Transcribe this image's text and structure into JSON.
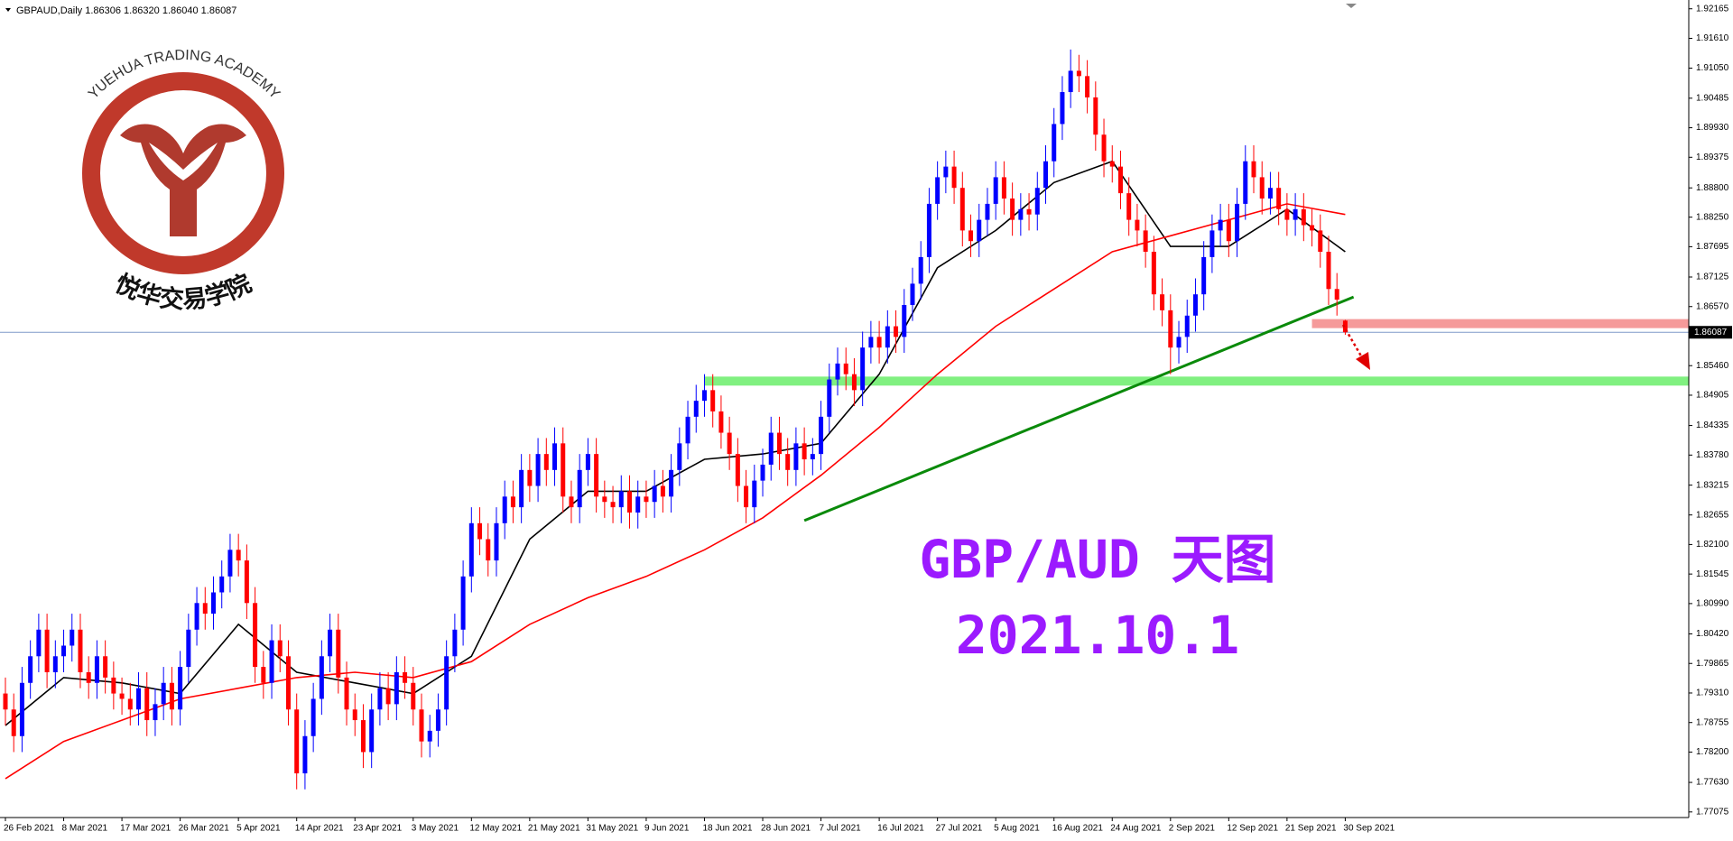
{
  "header": "GBPAUD,Daily  1.86306 1.86320 1.86040 1.86087",
  "logo": {
    "name_en": "YUEHUA TRADING ACADEMY",
    "name_cn": "悦华交易学院"
  },
  "chart_data": {
    "type": "candlestick",
    "title": "GBP/AUD  天图",
    "subtitle": "2021.10.1",
    "categories": [
      "26 Feb 2021",
      null,
      null,
      null,
      null,
      null,
      null,
      "8 Mar 2021",
      null,
      null,
      null,
      null,
      null,
      null,
      "17 Mar 2021",
      null,
      null,
      null,
      null,
      null,
      null,
      "26 Mar 2021",
      null,
      null,
      null,
      null,
      null,
      null,
      "5 Apr 2021",
      null,
      null,
      null,
      null,
      null,
      null,
      "14 Apr 2021",
      null,
      null,
      null,
      null,
      null,
      null,
      "23 Apr 2021",
      null,
      null,
      null,
      null,
      null,
      null,
      "3 May 2021",
      null,
      null,
      null,
      null,
      null,
      null,
      "12 May 2021",
      null,
      null,
      null,
      null,
      null,
      null,
      "21 May 2021",
      null,
      null,
      null,
      null,
      null,
      null,
      "31 May 2021",
      null,
      null,
      null,
      null,
      null,
      null,
      "9 Jun 2021",
      null,
      null,
      null,
      null,
      null,
      null,
      "18 Jun 2021",
      null,
      null,
      null,
      null,
      null,
      null,
      "28 Jun 2021",
      null,
      null,
      null,
      null,
      null,
      null,
      "7 Jul 2021",
      null,
      null,
      null,
      null,
      null,
      null,
      "16 Jul 2021",
      null,
      null,
      null,
      null,
      null,
      null,
      "27 Jul 2021",
      null,
      null,
      null,
      null,
      null,
      null,
      "5 Aug 2021",
      null,
      null,
      null,
      null,
      null,
      null,
      "16 Aug 2021",
      null,
      null,
      null,
      null,
      null,
      null,
      "24 Aug 2021",
      null,
      null,
      null,
      null,
      null,
      null,
      "2 Sep 2021",
      null,
      null,
      null,
      null,
      null,
      null,
      "12 Sep 2021",
      null,
      null,
      null,
      null,
      null,
      null,
      "21 Sep 2021",
      null,
      null,
      null,
      null,
      null,
      null,
      "30 Sep 2021"
    ],
    "open": [
      1.793,
      1.79,
      1.785,
      1.795,
      1.8,
      1.805,
      1.797,
      1.8,
      1.802,
      1.805,
      1.797,
      1.795,
      1.8,
      1.796,
      1.793,
      1.792,
      1.79,
      1.794,
      1.788,
      1.791,
      1.795,
      1.79,
      1.798,
      1.805,
      1.81,
      1.808,
      1.812,
      1.815,
      1.82,
      1.818,
      1.81,
      1.798,
      1.795,
      1.803,
      1.8,
      1.79,
      1.778,
      1.785,
      1.792,
      1.8,
      1.805,
      1.796,
      1.79,
      1.788,
      1.782,
      1.79,
      1.794,
      1.791,
      1.797,
      1.795,
      1.79,
      1.784,
      1.786,
      1.79,
      1.8,
      1.805,
      1.815,
      1.825,
      1.822,
      1.818,
      1.825,
      1.83,
      1.828,
      1.835,
      1.832,
      1.838,
      1.835,
      1.84,
      1.83,
      1.828,
      1.835,
      1.838,
      1.83,
      1.829,
      1.828,
      1.831,
      1.827,
      1.83,
      1.829,
      1.832,
      1.83,
      1.835,
      1.84,
      1.845,
      1.848,
      1.85,
      1.846,
      1.842,
      1.838,
      1.832,
      1.828,
      1.833,
      1.836,
      1.842,
      1.838,
      1.835,
      1.84,
      1.837,
      1.838,
      1.845,
      1.852,
      1.855,
      1.853,
      1.85,
      1.858,
      1.86,
      1.858,
      1.862,
      1.86,
      1.866,
      1.87,
      1.875,
      1.885,
      1.89,
      1.892,
      1.888,
      1.88,
      1.878,
      1.882,
      1.885,
      1.89,
      1.886,
      1.882,
      1.884,
      1.883,
      1.888,
      1.893,
      1.9,
      1.906,
      1.91,
      1.909,
      1.905,
      1.898,
      1.893,
      1.892,
      1.887,
      1.882,
      1.88,
      1.876,
      1.868,
      1.865,
      1.858,
      1.86,
      1.864,
      1.868,
      1.875,
      1.88,
      1.882,
      1.878,
      1.885,
      1.893,
      1.89,
      1.886,
      1.888,
      1.884,
      1.882,
      1.884,
      1.881,
      1.88,
      1.876,
      1.869,
      1.86306
    ],
    "high": [
      1.796,
      1.793,
      1.798,
      1.803,
      1.808,
      1.808,
      1.803,
      1.805,
      1.808,
      1.808,
      1.8,
      1.803,
      1.803,
      1.799,
      1.796,
      1.795,
      1.797,
      1.797,
      1.794,
      1.798,
      1.798,
      1.801,
      1.808,
      1.813,
      1.813,
      1.815,
      1.818,
      1.823,
      1.823,
      1.821,
      1.813,
      1.801,
      1.806,
      1.806,
      1.803,
      1.793,
      1.788,
      1.795,
      1.803,
      1.808,
      1.808,
      1.799,
      1.793,
      1.791,
      1.793,
      1.797,
      1.797,
      1.8,
      1.8,
      1.798,
      1.793,
      1.789,
      1.793,
      1.803,
      1.808,
      1.818,
      1.828,
      1.828,
      1.825,
      1.828,
      1.833,
      1.833,
      1.838,
      1.838,
      1.841,
      1.841,
      1.843,
      1.843,
      1.833,
      1.838,
      1.841,
      1.841,
      1.833,
      1.832,
      1.834,
      1.834,
      1.833,
      1.833,
      1.835,
      1.835,
      1.838,
      1.843,
      1.848,
      1.851,
      1.853,
      1.853,
      1.849,
      1.845,
      1.841,
      1.835,
      1.836,
      1.839,
      1.845,
      1.845,
      1.841,
      1.843,
      1.843,
      1.841,
      1.848,
      1.855,
      1.858,
      1.858,
      1.856,
      1.861,
      1.863,
      1.863,
      1.865,
      1.865,
      1.869,
      1.873,
      1.878,
      1.888,
      1.893,
      1.895,
      1.895,
      1.891,
      1.883,
      1.885,
      1.888,
      1.893,
      1.893,
      1.889,
      1.887,
      1.887,
      1.891,
      1.896,
      1.903,
      1.909,
      1.914,
      1.913,
      1.912,
      1.908,
      1.901,
      1.896,
      1.895,
      1.89,
      1.885,
      1.883,
      1.879,
      1.871,
      1.868,
      1.863,
      1.867,
      1.871,
      1.878,
      1.883,
      1.885,
      1.885,
      1.888,
      1.896,
      1.896,
      1.893,
      1.891,
      1.891,
      1.887,
      1.887,
      1.887,
      1.884,
      1.883,
      1.879,
      1.872,
      1.8632
    ],
    "low": [
      1.787,
      1.782,
      1.782,
      1.792,
      1.797,
      1.794,
      1.794,
      1.797,
      1.799,
      1.794,
      1.792,
      1.792,
      1.793,
      1.79,
      1.789,
      1.787,
      1.787,
      1.785,
      1.785,
      1.788,
      1.787,
      1.787,
      1.795,
      1.802,
      1.805,
      1.805,
      1.809,
      1.812,
      1.815,
      1.807,
      1.795,
      1.792,
      1.792,
      1.797,
      1.787,
      1.775,
      1.775,
      1.782,
      1.789,
      1.797,
      1.793,
      1.787,
      1.785,
      1.779,
      1.779,
      1.787,
      1.788,
      1.788,
      1.792,
      1.787,
      1.781,
      1.781,
      1.783,
      1.787,
      1.797,
      1.802,
      1.812,
      1.819,
      1.815,
      1.815,
      1.822,
      1.825,
      1.825,
      1.829,
      1.829,
      1.832,
      1.832,
      1.827,
      1.825,
      1.825,
      1.832,
      1.827,
      1.826,
      1.825,
      1.825,
      1.824,
      1.824,
      1.826,
      1.826,
      1.827,
      1.827,
      1.832,
      1.837,
      1.842,
      1.845,
      1.843,
      1.839,
      1.835,
      1.829,
      1.825,
      1.825,
      1.83,
      1.833,
      1.835,
      1.832,
      1.832,
      1.834,
      1.834,
      1.835,
      1.842,
      1.849,
      1.85,
      1.847,
      1.847,
      1.855,
      1.855,
      1.855,
      1.857,
      1.857,
      1.863,
      1.867,
      1.872,
      1.882,
      1.887,
      1.885,
      1.877,
      1.875,
      1.875,
      1.879,
      1.882,
      1.883,
      1.879,
      1.879,
      1.88,
      1.88,
      1.885,
      1.89,
      1.897,
      1.903,
      1.906,
      1.902,
      1.895,
      1.89,
      1.889,
      1.884,
      1.879,
      1.877,
      1.873,
      1.865,
      1.862,
      1.853,
      1.855,
      1.857,
      1.861,
      1.865,
      1.872,
      1.877,
      1.875,
      1.875,
      1.882,
      1.887,
      1.883,
      1.883,
      1.881,
      1.879,
      1.879,
      1.878,
      1.877,
      1.873,
      1.866,
      1.864,
      1.8604
    ],
    "close": [
      1.79,
      1.785,
      1.795,
      1.8,
      1.805,
      1.797,
      1.8,
      1.802,
      1.805,
      1.797,
      1.795,
      1.8,
      1.796,
      1.793,
      1.792,
      1.79,
      1.794,
      1.788,
      1.791,
      1.795,
      1.79,
      1.798,
      1.805,
      1.81,
      1.808,
      1.812,
      1.815,
      1.82,
      1.818,
      1.81,
      1.798,
      1.795,
      1.803,
      1.8,
      1.79,
      1.778,
      1.785,
      1.792,
      1.8,
      1.805,
      1.796,
      1.79,
      1.788,
      1.782,
      1.79,
      1.794,
      1.791,
      1.797,
      1.795,
      1.79,
      1.784,
      1.786,
      1.79,
      1.8,
      1.805,
      1.815,
      1.825,
      1.822,
      1.818,
      1.825,
      1.83,
      1.828,
      1.835,
      1.832,
      1.838,
      1.835,
      1.84,
      1.83,
      1.828,
      1.835,
      1.838,
      1.83,
      1.829,
      1.828,
      1.831,
      1.827,
      1.83,
      1.829,
      1.832,
      1.83,
      1.835,
      1.84,
      1.845,
      1.848,
      1.85,
      1.846,
      1.842,
      1.838,
      1.832,
      1.828,
      1.833,
      1.836,
      1.842,
      1.838,
      1.835,
      1.84,
      1.837,
      1.838,
      1.845,
      1.852,
      1.855,
      1.853,
      1.85,
      1.858,
      1.86,
      1.858,
      1.862,
      1.86,
      1.866,
      1.87,
      1.875,
      1.885,
      1.89,
      1.892,
      1.888,
      1.88,
      1.878,
      1.882,
      1.885,
      1.89,
      1.886,
      1.882,
      1.884,
      1.883,
      1.888,
      1.893,
      1.9,
      1.906,
      1.91,
      1.909,
      1.905,
      1.898,
      1.893,
      1.892,
      1.887,
      1.882,
      1.88,
      1.876,
      1.868,
      1.865,
      1.858,
      1.86,
      1.864,
      1.868,
      1.875,
      1.88,
      1.882,
      1.878,
      1.885,
      1.893,
      1.89,
      1.886,
      1.888,
      1.884,
      1.882,
      1.884,
      1.881,
      1.88,
      1.876,
      1.869,
      1.867,
      1.86087
    ],
    "up_color": "#0000ff",
    "down_color": "#ff0000",
    "ylim": [
      1.7697,
      1.9233
    ],
    "yticks": [
      1.92165,
      {
        "value": 1.9161,
        "label": "1.91610"
      },
      {
        "value": 1.9105,
        "label": "1.91050"
      },
      1.90485,
      {
        "value": 1.8993,
        "label": "1.89930"
      },
      1.89375,
      {
        "value": 1.888,
        "label": "1.88800"
      },
      {
        "value": 1.8825,
        "label": "1.88250"
      },
      1.87695,
      1.87125,
      {
        "value": 1.8657,
        "label": "1.86570"
      },
      {
        "value": 1.8546,
        "label": "1.85460"
      },
      1.84905,
      1.84335,
      {
        "value": 1.8378,
        "label": "1.83780"
      },
      1.83215,
      1.82655,
      {
        "value": 1.821,
        "label": "1.82100"
      },
      1.81545,
      {
        "value": 1.8099,
        "label": "1.80990"
      },
      {
        "value": 1.8042,
        "label": "1.80420"
      },
      1.79865,
      {
        "value": 1.7931,
        "label": "1.79310"
      },
      1.78755,
      {
        "value": 1.782,
        "label": "1.78200"
      },
      {
        "value": 1.7763,
        "label": "1.77630"
      },
      1.77075
    ],
    "last_price": 1.86087,
    "lines": [
      {
        "color": "#000000",
        "x": [
          0,
          7,
          14,
          21,
          28,
          35,
          42,
          49,
          56,
          63,
          70,
          77,
          84,
          91,
          98,
          105,
          112,
          119,
          126,
          133,
          140,
          147,
          154,
          161
        ],
        "values": [
          1.787,
          1.796,
          1.795,
          1.793,
          1.806,
          1.797,
          1.795,
          1.793,
          1.8,
          1.822,
          1.831,
          1.831,
          1.837,
          1.838,
          1.84,
          1.853,
          1.873,
          1.88,
          1.889,
          1.893,
          1.877,
          1.877,
          1.884,
          1.876
        ]
      },
      {
        "color": "#ff0000",
        "x": [
          0,
          7,
          14,
          21,
          28,
          35,
          42,
          49,
          56,
          63,
          70,
          77,
          84,
          91,
          98,
          105,
          112,
          119,
          126,
          133,
          140,
          147,
          154,
          161
        ],
        "values": [
          1.777,
          1.784,
          1.788,
          1.792,
          1.794,
          1.796,
          1.797,
          1.796,
          1.799,
          1.806,
          1.811,
          1.815,
          1.82,
          1.826,
          1.834,
          1.843,
          1.853,
          1.862,
          1.869,
          1.876,
          1.879,
          1.882,
          1.885,
          1.883
        ]
      }
    ],
    "levels": [
      {
        "value": 1.8517,
        "start": 84,
        "color": "#80f080"
      },
      {
        "value": 1.8625,
        "start": 157,
        "color": "#f59a9a"
      }
    ],
    "trendline": {
      "x": [
        96,
        162
      ],
      "values": [
        1.8255,
        1.8675
      ],
      "color": "#0a8a0a"
    }
  }
}
